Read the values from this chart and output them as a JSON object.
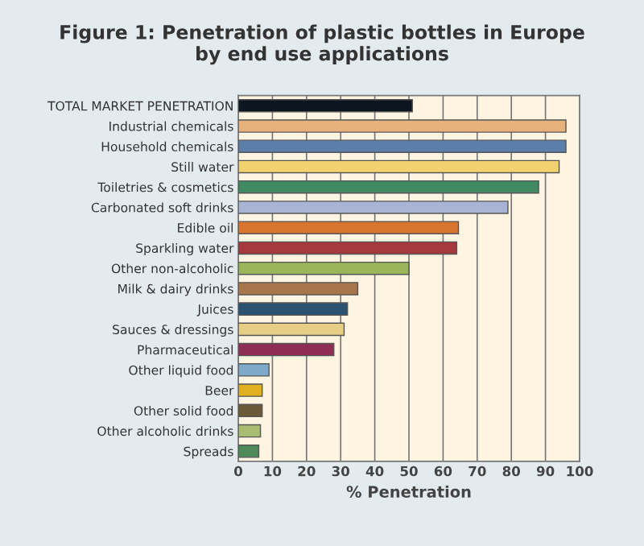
{
  "chart_data": {
    "type": "bar",
    "orientation": "horizontal",
    "title": "Figure 1: Penetration of plastic bottles in Europe\nby end use applications",
    "xlabel": "% Penetration",
    "categories": [
      "TOTAL MARKET PENETRATION",
      "Industrial chemicals",
      "Household chemicals",
      "Still water",
      "Toiletries & cosmetics",
      "Carbonated soft drinks",
      "Edible oil",
      "Sparkling water",
      "Other non-alcoholic",
      "Milk & dairy drinks",
      "Juices",
      "Sauces & dressings",
      "Pharmaceutical",
      "Other liquid food",
      "Beer",
      "Other solid food",
      "Other alcoholic drinks",
      "Spreads"
    ],
    "values": [
      51,
      96,
      96,
      94,
      88,
      79,
      64.5,
      64,
      50,
      35,
      32,
      31,
      28,
      9,
      7,
      7,
      6.5,
      6
    ],
    "colors": [
      "#0d1520",
      "#e8b27c",
      "#5b7fa8",
      "#f2d270",
      "#3f8a62",
      "#a9b4d4",
      "#d9742e",
      "#a6393d",
      "#9ab55a",
      "#a8764a",
      "#2c5272",
      "#e6cf85",
      "#8e2d55",
      "#7fa9c9",
      "#e0b020",
      "#6b5a3a",
      "#a9bd72",
      "#4f8a5a"
    ],
    "xlim": [
      0,
      100
    ],
    "xticks": [
      0,
      10,
      20,
      30,
      40,
      50,
      60,
      70,
      80,
      90,
      100
    ],
    "grid": "x"
  }
}
